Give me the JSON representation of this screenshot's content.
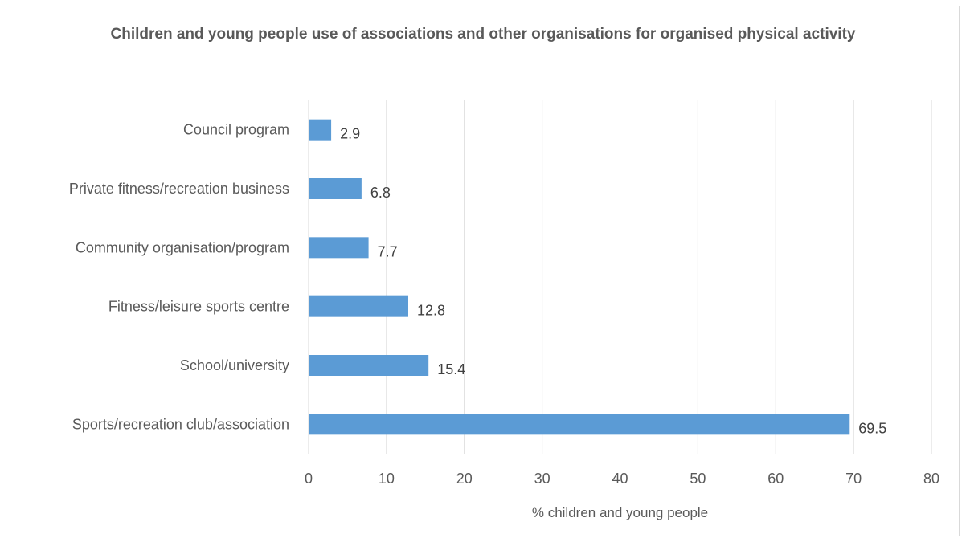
{
  "chart_data": {
    "type": "bar",
    "orientation": "horizontal",
    "title": "Children and young people use of associations and other organisations for organised physical activity",
    "categories": [
      "Council program",
      "Private fitness/recreation business",
      "Community organisation/program",
      "Fitness/leisure sports centre",
      "School/university",
      "Sports/recreation club/association"
    ],
    "values": [
      2.9,
      6.8,
      7.7,
      12.8,
      15.4,
      69.5
    ],
    "data_labels": [
      "2.9",
      "6.8",
      "7.7",
      "12.8",
      "15.4",
      "69.5"
    ],
    "xlabel": "% children and young people",
    "ylabel": "",
    "xlim": [
      0,
      80
    ],
    "xticks": [
      "0",
      "10",
      "20",
      "30",
      "40",
      "50",
      "60",
      "70",
      "80"
    ],
    "grid": "vertical",
    "legend": "none",
    "bar_color": "#5b9bd5",
    "grid_color": "#d9d9d9"
  }
}
